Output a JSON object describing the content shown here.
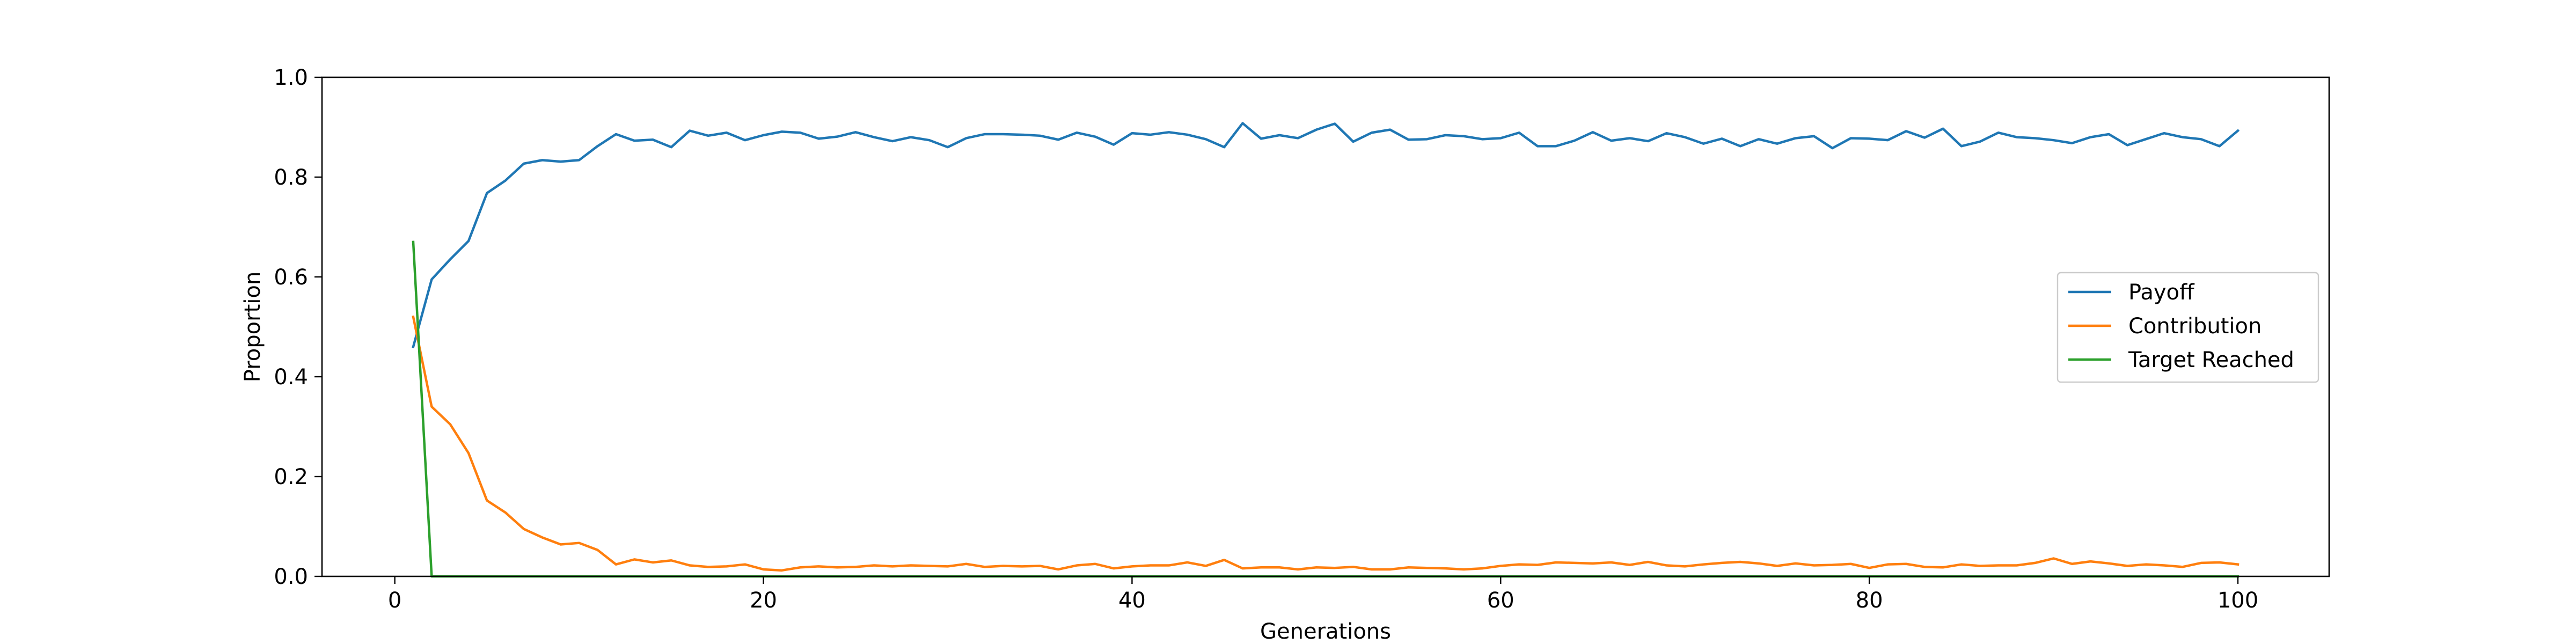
{
  "chart_data": {
    "type": "line",
    "title": "",
    "xlabel": "Generations",
    "ylabel": "Proportion",
    "xlim": [
      -3.95,
      104.95
    ],
    "ylim": [
      0.0,
      1.0
    ],
    "xticks": [
      0,
      20,
      40,
      60,
      80,
      100
    ],
    "yticks": [
      0.0,
      0.2,
      0.4,
      0.6,
      0.8,
      1.0
    ],
    "xtick_labels": [
      "0",
      "20",
      "40",
      "60",
      "80",
      "100"
    ],
    "ytick_labels": [
      "0.0",
      "0.2",
      "0.4",
      "0.6",
      "0.8",
      "1.0"
    ],
    "grid": false,
    "legend_position": "center-right",
    "series": [
      {
        "name": "Payoff",
        "color": "#1f77b4",
        "x": [
          1,
          2,
          3,
          4,
          5,
          6,
          7,
          8,
          9,
          10,
          11,
          12,
          13,
          14,
          15,
          16,
          17,
          18,
          19,
          20,
          21,
          22,
          23,
          24,
          25,
          26,
          27,
          28,
          29,
          30,
          31,
          32,
          33,
          34,
          35,
          36,
          37,
          38,
          39,
          40,
          41,
          42,
          43,
          44,
          45,
          46,
          47,
          48,
          49,
          50,
          51,
          52,
          53,
          54,
          55,
          56,
          57,
          58,
          59,
          60,
          61,
          62,
          63,
          64,
          65,
          66,
          67,
          68,
          69,
          70,
          71,
          72,
          73,
          74,
          75,
          76,
          77,
          78,
          79,
          80,
          81,
          82,
          83,
          84,
          85,
          86,
          87,
          88,
          89,
          90,
          91,
          92,
          93,
          94,
          95,
          96,
          97,
          98,
          99,
          100
        ],
        "values": [
          0.46,
          0.595,
          0.635,
          0.672,
          0.768,
          0.793,
          0.827,
          0.834,
          0.831,
          0.834,
          0.862,
          0.886,
          0.873,
          0.875,
          0.86,
          0.893,
          0.883,
          0.889,
          0.874,
          0.884,
          0.891,
          0.889,
          0.877,
          0.881,
          0.89,
          0.88,
          0.872,
          0.88,
          0.874,
          0.86,
          0.878,
          0.886,
          0.886,
          0.885,
          0.883,
          0.875,
          0.889,
          0.881,
          0.865,
          0.888,
          0.885,
          0.89,
          0.885,
          0.876,
          0.86,
          0.908,
          0.877,
          0.884,
          0.878,
          0.895,
          0.907,
          0.871,
          0.889,
          0.895,
          0.875,
          0.876,
          0.884,
          0.882,
          0.876,
          0.878,
          0.889,
          0.862,
          0.862,
          0.873,
          0.89,
          0.873,
          0.878,
          0.872,
          0.888,
          0.88,
          0.867,
          0.877,
          0.862,
          0.876,
          0.867,
          0.878,
          0.882,
          0.858,
          0.878,
          0.877,
          0.874,
          0.892,
          0.879,
          0.897,
          0.862,
          0.871,
          0.889,
          0.88,
          0.878,
          0.874,
          0.868,
          0.88,
          0.886,
          0.864,
          0.876,
          0.888,
          0.88,
          0.876,
          0.862,
          0.893
        ]
      },
      {
        "name": "Contribution",
        "color": "#ff7f0e",
        "x": [
          1,
          2,
          3,
          4,
          5,
          6,
          7,
          8,
          9,
          10,
          11,
          12,
          13,
          14,
          15,
          16,
          17,
          18,
          19,
          20,
          21,
          22,
          23,
          24,
          25,
          26,
          27,
          28,
          29,
          30,
          31,
          32,
          33,
          34,
          35,
          36,
          37,
          38,
          39,
          40,
          41,
          42,
          43,
          44,
          45,
          46,
          47,
          48,
          49,
          50,
          51,
          52,
          53,
          54,
          55,
          56,
          57,
          58,
          59,
          60,
          61,
          62,
          63,
          64,
          65,
          66,
          67,
          68,
          69,
          70,
          71,
          72,
          73,
          74,
          75,
          76,
          77,
          78,
          79,
          80,
          81,
          82,
          83,
          84,
          85,
          86,
          87,
          88,
          89,
          90,
          91,
          92,
          93,
          94,
          95,
          96,
          97,
          98,
          99,
          100
        ],
        "values": [
          0.52,
          0.34,
          0.305,
          0.247,
          0.152,
          0.128,
          0.095,
          0.078,
          0.064,
          0.067,
          0.053,
          0.024,
          0.034,
          0.028,
          0.032,
          0.022,
          0.019,
          0.02,
          0.024,
          0.014,
          0.012,
          0.018,
          0.02,
          0.018,
          0.019,
          0.022,
          0.02,
          0.022,
          0.021,
          0.02,
          0.025,
          0.019,
          0.021,
          0.02,
          0.021,
          0.014,
          0.022,
          0.025,
          0.016,
          0.02,
          0.022,
          0.022,
          0.028,
          0.021,
          0.033,
          0.016,
          0.018,
          0.018,
          0.014,
          0.018,
          0.017,
          0.019,
          0.014,
          0.014,
          0.018,
          0.017,
          0.016,
          0.014,
          0.016,
          0.021,
          0.024,
          0.023,
          0.028,
          0.027,
          0.026,
          0.028,
          0.023,
          0.029,
          0.022,
          0.02,
          0.024,
          0.027,
          0.029,
          0.026,
          0.021,
          0.026,
          0.022,
          0.023,
          0.025,
          0.017,
          0.024,
          0.025,
          0.019,
          0.018,
          0.024,
          0.021,
          0.022,
          0.022,
          0.027,
          0.036,
          0.025,
          0.03,
          0.026,
          0.021,
          0.024,
          0.022,
          0.019,
          0.027,
          0.028,
          0.024
        ]
      },
      {
        "name": "Target Reached",
        "color": "#2ca02c",
        "x": [
          1,
          2,
          3,
          4,
          5,
          6,
          7,
          8,
          9,
          10,
          11,
          12,
          13,
          14,
          15,
          16,
          17,
          18,
          19,
          20,
          21,
          22,
          23,
          24,
          25,
          26,
          27,
          28,
          29,
          30,
          31,
          32,
          33,
          34,
          35,
          36,
          37,
          38,
          39,
          40,
          41,
          42,
          43,
          44,
          45,
          46,
          47,
          48,
          49,
          50,
          51,
          52,
          53,
          54,
          55,
          56,
          57,
          58,
          59,
          60,
          61,
          62,
          63,
          64,
          65,
          66,
          67,
          68,
          69,
          70,
          71,
          72,
          73,
          74,
          75,
          76,
          77,
          78,
          79,
          80,
          81,
          82,
          83,
          84,
          85,
          86,
          87,
          88,
          89,
          90,
          91,
          92,
          93,
          94,
          95,
          96,
          97,
          98,
          99,
          100
        ],
        "values": [
          0.67,
          0,
          0,
          0,
          0,
          0,
          0,
          0,
          0,
          0,
          0,
          0,
          0,
          0,
          0,
          0,
          0,
          0,
          0,
          0,
          0,
          0,
          0,
          0,
          0,
          0,
          0,
          0,
          0,
          0,
          0,
          0,
          0,
          0,
          0,
          0,
          0,
          0,
          0,
          0,
          0,
          0,
          0,
          0,
          0,
          0,
          0,
          0,
          0,
          0,
          0,
          0,
          0,
          0,
          0,
          0,
          0,
          0,
          0,
          0,
          0,
          0,
          0,
          0,
          0,
          0,
          0,
          0,
          0,
          0,
          0,
          0,
          0,
          0,
          0,
          0,
          0,
          0,
          0,
          0,
          0,
          0,
          0,
          0,
          0,
          0,
          0,
          0,
          0,
          0,
          0,
          0,
          0,
          0,
          0,
          0,
          0,
          0,
          0,
          0
        ]
      }
    ]
  }
}
